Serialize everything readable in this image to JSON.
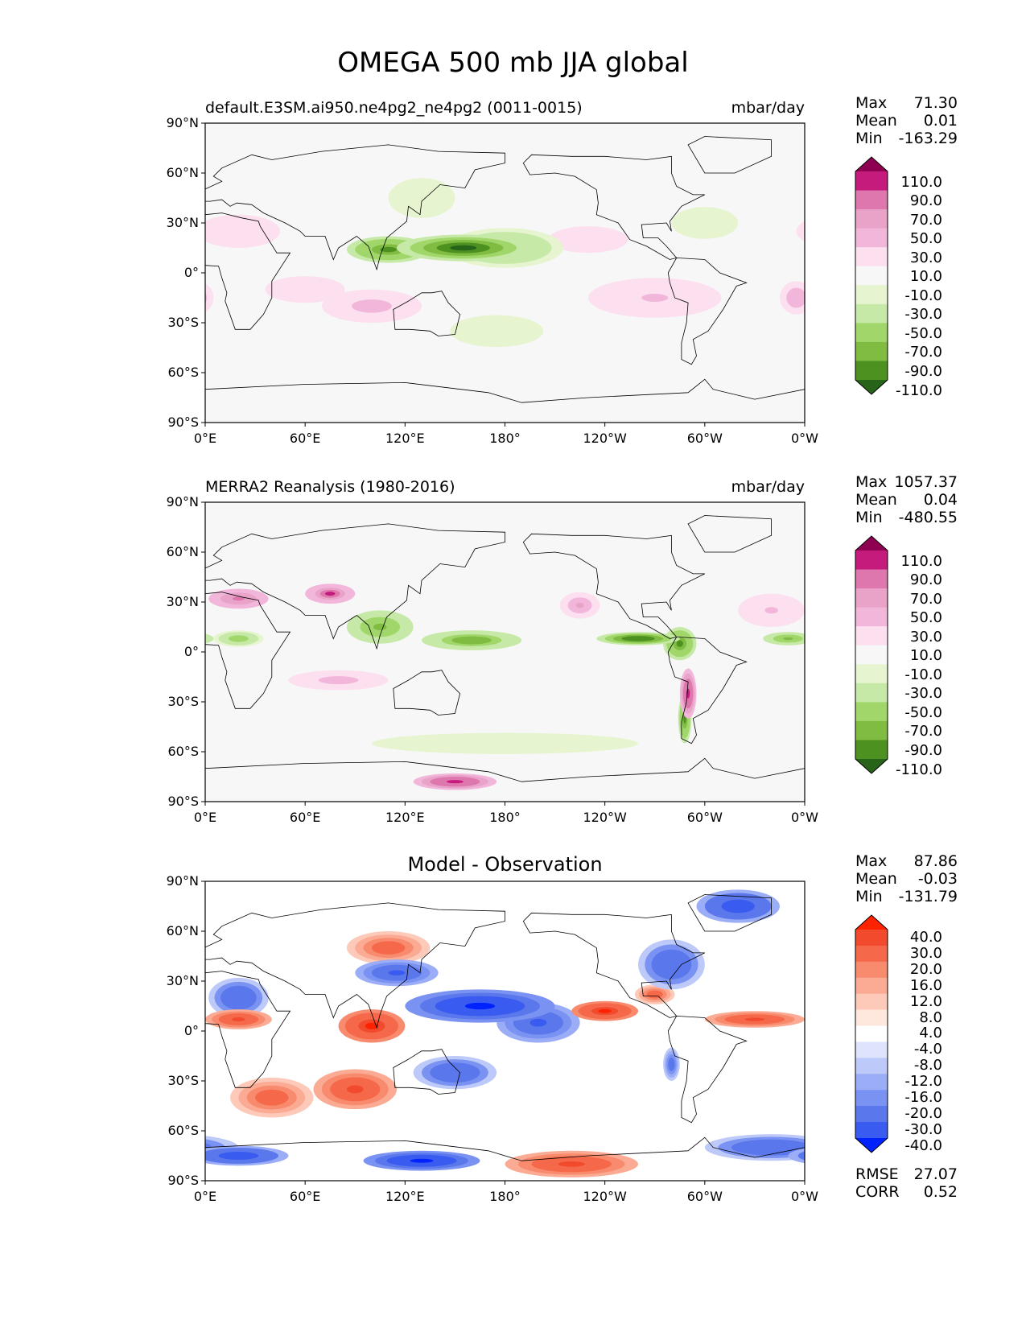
{
  "title": "OMEGA 500 mb JJA global",
  "chart_data": [
    {
      "type": "heatmap",
      "panel": "test",
      "title_left": "default.E3SM.ai950.ne4pg2_ne4pg2 (0011-0015)",
      "title_center": "",
      "units": "mbar/day",
      "stats": [
        {
          "label": "Max",
          "value": "71.30"
        },
        {
          "label": "Mean",
          "value": "0.01"
        },
        {
          "label": "Min",
          "value": "-163.29"
        }
      ],
      "colorbar": {
        "levels": [
          "110.0",
          "90.0",
          "70.0",
          "50.0",
          "30.0",
          "10.0",
          "-10.0",
          "-30.0",
          "-50.0",
          "-70.0",
          "-90.0",
          "-110.0"
        ],
        "colors": [
          "#8e0152",
          "#c51b7d",
          "#de77ae",
          "#e9a3c9",
          "#f1b6da",
          "#fde0ef",
          "#f7f7f7",
          "#e6f5d0",
          "#c7e9a7",
          "#a1d76a",
          "#7fbc41",
          "#4d9221",
          "#276419"
        ]
      },
      "features": [
        {
          "lon": 155,
          "lat": 15,
          "value": -120,
          "rlon": 40,
          "rlat": 8
        },
        {
          "lon": 110,
          "lat": 14,
          "value": -100,
          "rlon": 25,
          "rlat": 8
        },
        {
          "lon": 180,
          "lat": 15,
          "value": -60,
          "rlon": 35,
          "rlat": 12
        },
        {
          "lon": 175,
          "lat": -35,
          "value": -20,
          "rlon": 35,
          "rlat": 12
        },
        {
          "lon": 130,
          "lat": 45,
          "value": -25,
          "rlon": 25,
          "rlat": 15
        },
        {
          "lon": 300,
          "lat": 30,
          "value": -25,
          "rlon": 25,
          "rlat": 12
        },
        {
          "lon": 100,
          "lat": -20,
          "value": 40,
          "rlon": 30,
          "rlat": 10
        },
        {
          "lon": 270,
          "lat": -15,
          "value": 30,
          "rlon": 40,
          "rlat": 12
        },
        {
          "lon": 20,
          "lat": 25,
          "value": 25,
          "rlon": 25,
          "rlat": 10
        },
        {
          "lon": 355,
          "lat": -15,
          "value": 45,
          "rlon": 10,
          "rlat": 10
        },
        {
          "lon": 230,
          "lat": 20,
          "value": 20,
          "rlon": 30,
          "rlat": 10
        },
        {
          "lon": 60,
          "lat": -10,
          "value": 20,
          "rlon": 30,
          "rlat": 10
        }
      ],
      "xticks": [
        "0°E",
        "60°E",
        "120°E",
        "180°",
        "120°W",
        "60°W",
        "0°W"
      ],
      "yticks": [
        "90°N",
        "60°N",
        "30°N",
        "0°",
        "30°S",
        "60°S",
        "90°S"
      ],
      "xlim": [
        0,
        360
      ],
      "ylim": [
        -90,
        90
      ]
    },
    {
      "type": "heatmap",
      "panel": "reference",
      "title_left": "MERRA2 Reanalysis (1980-2016)",
      "title_center": "",
      "units": "mbar/day",
      "stats": [
        {
          "label": "Max",
          "value": "1057.37"
        },
        {
          "label": "Mean",
          "value": "0.04"
        },
        {
          "label": "Min",
          "value": "-480.55"
        }
      ],
      "colorbar": {
        "levels": [
          "110.0",
          "90.0",
          "70.0",
          "50.0",
          "30.0",
          "10.0",
          "-10.0",
          "-30.0",
          "-50.0",
          "-70.0",
          "-90.0",
          "-110.0"
        ],
        "colors": [
          "#8e0152",
          "#c51b7d",
          "#de77ae",
          "#e9a3c9",
          "#f1b6da",
          "#fde0ef",
          "#f7f7f7",
          "#e6f5d0",
          "#c7e9a7",
          "#a1d76a",
          "#7fbc41",
          "#4d9221",
          "#276419"
        ]
      },
      "features": [
        {
          "lon": 160,
          "lat": 7,
          "value": -90,
          "rlon": 30,
          "rlat": 6
        },
        {
          "lon": 260,
          "lat": 8,
          "value": -110,
          "rlon": 25,
          "rlat": 4
        },
        {
          "lon": 285,
          "lat": 5,
          "value": -100,
          "rlon": 10,
          "rlat": 10
        },
        {
          "lon": 105,
          "lat": 15,
          "value": -80,
          "rlon": 20,
          "rlat": 10
        },
        {
          "lon": 20,
          "lat": 8,
          "value": -60,
          "rlon": 15,
          "rlat": 5
        },
        {
          "lon": 350,
          "lat": 8,
          "value": -80,
          "rlon": 15,
          "rlat": 4
        },
        {
          "lon": 288,
          "lat": -40,
          "value": -100,
          "rlon": 4,
          "rlat": 15
        },
        {
          "lon": 180,
          "lat": -55,
          "value": -20,
          "rlon": 100,
          "rlat": 8
        },
        {
          "lon": 20,
          "lat": 32,
          "value": 80,
          "rlon": 18,
          "rlat": 6
        },
        {
          "lon": 75,
          "lat": 35,
          "value": 90,
          "rlon": 15,
          "rlat": 6
        },
        {
          "lon": 290,
          "lat": -25,
          "value": 100,
          "rlon": 5,
          "rlat": 15
        },
        {
          "lon": 150,
          "lat": -78,
          "value": 100,
          "rlon": 25,
          "rlat": 5
        },
        {
          "lon": 225,
          "lat": 28,
          "value": 50,
          "rlon": 12,
          "rlat": 8
        },
        {
          "lon": 80,
          "lat": -17,
          "value": 40,
          "rlon": 30,
          "rlat": 6
        },
        {
          "lon": 340,
          "lat": 25,
          "value": 30,
          "rlon": 20,
          "rlat": 10
        }
      ],
      "xticks": [
        "0°E",
        "60°E",
        "120°E",
        "180°",
        "120°W",
        "60°W",
        "0°W"
      ],
      "yticks": [
        "90°N",
        "60°N",
        "30°N",
        "0°",
        "30°S",
        "60°S",
        "90°S"
      ],
      "xlim": [
        0,
        360
      ],
      "ylim": [
        -90,
        90
      ]
    },
    {
      "type": "heatmap",
      "panel": "diff",
      "title_left": "",
      "title_center": "Model - Observation",
      "units": "",
      "stats": [
        {
          "label": "Max",
          "value": "87.86"
        },
        {
          "label": "Mean",
          "value": "-0.03"
        },
        {
          "label": "Min",
          "value": "-131.79"
        }
      ],
      "extra_stats": [
        {
          "label": "RMSE",
          "value": "27.07"
        },
        {
          "label": "CORR",
          "value": "0.52"
        }
      ],
      "colorbar": {
        "levels": [
          "40.0",
          "30.0",
          "20.0",
          "16.0",
          "12.0",
          "8.0",
          "4.0",
          "-4.0",
          "-8.0",
          "-12.0",
          "-16.0",
          "-20.0",
          "-30.0",
          "-40.0"
        ],
        "colors": [
          "#ff2200",
          "#f14a2d",
          "#f5694a",
          "#f88b6e",
          "#fbaa93",
          "#fdcab9",
          "#fee8dd",
          "#ffffff",
          "#dde4fc",
          "#bcc9f9",
          "#9aadf6",
          "#7a92f1",
          "#5a77ec",
          "#3a5bf0",
          "#0022ff"
        ]
      },
      "features": [
        {
          "lon": 165,
          "lat": 15,
          "value": -45,
          "rlon": 45,
          "rlat": 10
        },
        {
          "lon": 200,
          "lat": 5,
          "value": -35,
          "rlon": 25,
          "rlat": 12
        },
        {
          "lon": 115,
          "lat": 35,
          "value": -35,
          "rlon": 25,
          "rlat": 8
        },
        {
          "lon": 280,
          "lat": 40,
          "value": -30,
          "rlon": 20,
          "rlat": 15
        },
        {
          "lon": 320,
          "lat": 75,
          "value": -40,
          "rlon": 25,
          "rlat": 10
        },
        {
          "lon": 20,
          "lat": 20,
          "value": -30,
          "rlon": 18,
          "rlat": 12
        },
        {
          "lon": 150,
          "lat": -25,
          "value": -30,
          "rlon": 25,
          "rlat": 10
        },
        {
          "lon": 20,
          "lat": -75,
          "value": -40,
          "rlon": 30,
          "rlat": 6
        },
        {
          "lon": 130,
          "lat": -78,
          "value": -45,
          "rlon": 35,
          "rlat": 6
        },
        {
          "lon": 340,
          "lat": -70,
          "value": -30,
          "rlon": 40,
          "rlat": 8
        },
        {
          "lon": 280,
          "lat": -20,
          "value": -25,
          "rlon": 5,
          "rlat": 10
        },
        {
          "lon": 240,
          "lat": 12,
          "value": 40,
          "rlon": 20,
          "rlat": 6
        },
        {
          "lon": 330,
          "lat": 7,
          "value": 35,
          "rlon": 30,
          "rlat": 5
        },
        {
          "lon": 20,
          "lat": 7,
          "value": 35,
          "rlon": 20,
          "rlat": 6
        },
        {
          "lon": 100,
          "lat": 3,
          "value": 40,
          "rlon": 20,
          "rlat": 10
        },
        {
          "lon": 90,
          "lat": -35,
          "value": 30,
          "rlon": 25,
          "rlat": 12
        },
        {
          "lon": 40,
          "lat": -40,
          "value": 25,
          "rlon": 25,
          "rlat": 12
        },
        {
          "lon": 220,
          "lat": -80,
          "value": 35,
          "rlon": 40,
          "rlat": 8
        },
        {
          "lon": 110,
          "lat": 50,
          "value": 25,
          "rlon": 25,
          "rlat": 10
        },
        {
          "lon": 270,
          "lat": 22,
          "value": 25,
          "rlon": 12,
          "rlat": 6
        }
      ],
      "xticks": [
        "0°E",
        "60°E",
        "120°E",
        "180°",
        "120°W",
        "60°W",
        "0°W"
      ],
      "yticks": [
        "90°N",
        "60°N",
        "30°N",
        "0°",
        "30°S",
        "60°S",
        "90°S"
      ],
      "xlim": [
        0,
        360
      ],
      "ylim": [
        -90,
        90
      ]
    }
  ]
}
